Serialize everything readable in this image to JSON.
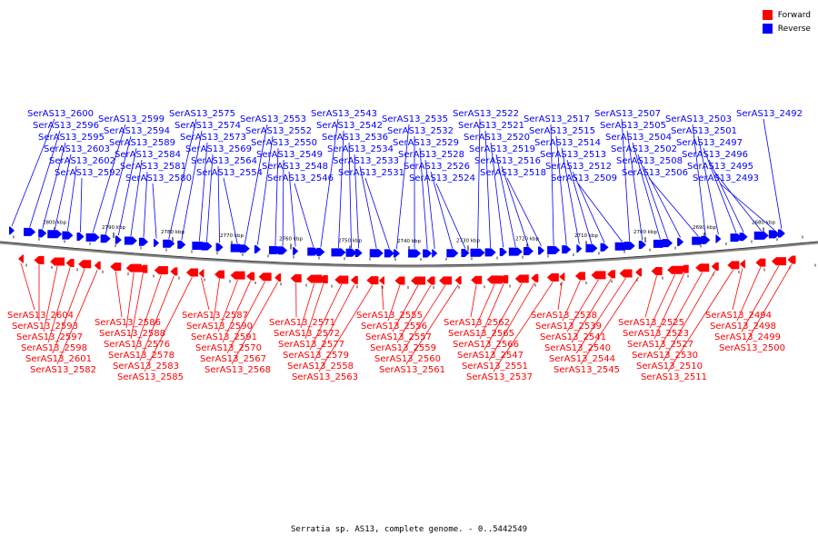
{
  "legend": {
    "forward_label": "Forward",
    "reverse_label": "Reverse",
    "forward_color": "#ff0000",
    "reverse_color": "#0000ff"
  },
  "caption": "Serratia sp. AS13, complete genome. - 0..5442549",
  "scale": {
    "ticks": [
      {
        "label": "2800 kbp",
        "pos": 2800
      },
      {
        "label": "2790 kbp",
        "pos": 2790
      },
      {
        "label": "2780 kbp",
        "pos": 2780
      },
      {
        "label": "2770 kbp",
        "pos": 2770
      },
      {
        "label": "2760 kbp",
        "pos": 2760
      },
      {
        "label": "2750 kbp",
        "pos": 2750
      },
      {
        "label": "2740 kbp",
        "pos": 2740
      },
      {
        "label": "2730 kbp",
        "pos": 2730
      },
      {
        "label": "2720 kbp",
        "pos": 2720
      },
      {
        "label": "2710 kbp",
        "pos": 2710
      },
      {
        "label": "2700 kbp",
        "pos": 2700
      },
      {
        "label": "2690 kbp",
        "pos": 2690
      },
      {
        "label": "2680 kbp",
        "pos": 2680
      }
    ]
  },
  "reverse_genes": [
    "SerAS13_2600",
    "SerAS13_2596",
    "SerAS13_2595",
    "SerAS13_2603",
    "SerAS13_2602",
    "SerAS13_2592",
    "SerAS13_2599",
    "SerAS13_2594",
    "SerAS13_2589",
    "SerAS13_2584",
    "SerAS13_2581",
    "SerAS13_2580",
    "SerAS13_2575",
    "SerAS13_2574",
    "SerAS13_2573",
    "SerAS13_2569",
    "SerAS13_2564",
    "SerAS13_2554",
    "SerAS13_2553",
    "SerAS13_2552",
    "SerAS13_2550",
    "SerAS13_2549",
    "SerAS13_2548",
    "SerAS13_2546",
    "SerAS13_2543",
    "SerAS13_2542",
    "SerAS13_2536",
    "SerAS13_2534",
    "SerAS13_2533",
    "SerAS13_2531",
    "SerAS13_2535",
    "SerAS13_2532",
    "SerAS13_2529",
    "SerAS13_2528",
    "SerAS13_2526",
    "SerAS13_2524",
    "SerAS13_2522",
    "SerAS13_2521",
    "SerAS13_2520",
    "SerAS13_2519",
    "SerAS13_2516",
    "SerAS13_2518",
    "SerAS13_2517",
    "SerAS13_2515",
    "SerAS13_2514",
    "SerAS13_2513",
    "SerAS13_2512",
    "SerAS13_2509",
    "SerAS13_2507",
    "SerAS13_2505",
    "SerAS13_2504",
    "SerAS13_2502",
    "SerAS13_2508",
    "SerAS13_2506",
    "SerAS13_2503",
    "SerAS13_2501",
    "SerAS13_2497",
    "SerAS13_2496",
    "SerAS13_2495",
    "SerAS13_2493",
    "SerAS13_2492"
  ],
  "forward_genes": [
    "SerAS13_2604",
    "SerAS13_2593",
    "SerAS13_2597",
    "SerAS13_2598",
    "SerAS13_2601",
    "SerAS13_2582",
    "SerAS13_2586",
    "SerAS13_2588",
    "SerAS13_2576",
    "SerAS13_2578",
    "SerAS13_2583",
    "SerAS13_2585",
    "SerAS13_2587",
    "SerAS13_2590",
    "SerAS13_2591",
    "SerAS13_2570",
    "SerAS13_2567",
    "SerAS13_2568",
    "SerAS13_2571",
    "SerAS13_2572",
    "SerAS13_2577",
    "SerAS13_2579",
    "SerAS13_2558",
    "SerAS13_2563",
    "SerAS13_2555",
    "SerAS13_2556",
    "SerAS13_2557",
    "SerAS13_2559",
    "SerAS13_2560",
    "SerAS13_2561",
    "SerAS13_2562",
    "SerAS13_2565",
    "SerAS13_2566",
    "SerAS13_2547",
    "SerAS13_2551",
    "SerAS13_2537",
    "SerAS13_2538",
    "SerAS13_2539",
    "SerAS13_2541",
    "SerAS13_2540",
    "SerAS13_2544",
    "SerAS13_2545",
    "SerAS13_2525",
    "SerAS13_2523",
    "SerAS13_2527",
    "SerAS13_2530",
    "SerAS13_2510",
    "SerAS13_2511",
    "SerAS13_2494",
    "SerAS13_2498",
    "SerAS13_2499",
    "SerAS13_2500"
  ]
}
